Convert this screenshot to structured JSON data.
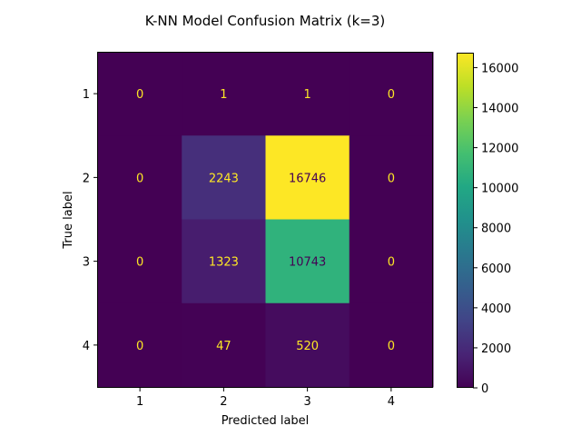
{
  "chart_data": {
    "type": "heatmap",
    "title": "K-NN Model Confusion Matrix (k=3)",
    "xlabel": "Predicted label",
    "ylabel": "True label",
    "x_categories": [
      "1",
      "2",
      "3",
      "4"
    ],
    "y_categories": [
      "1",
      "2",
      "3",
      "4"
    ],
    "values": [
      [
        0,
        1,
        1,
        0
      ],
      [
        0,
        2243,
        16746,
        0
      ],
      [
        0,
        1323,
        10743,
        0
      ],
      [
        0,
        47,
        520,
        0
      ]
    ],
    "colormap": "viridis",
    "colorbar": {
      "range": [
        0,
        16746
      ],
      "ticks": [
        0,
        2000,
        4000,
        6000,
        8000,
        10000,
        12000,
        14000,
        16000
      ]
    },
    "text_colors": {
      "light": "#fde725",
      "dark": "#440154"
    }
  }
}
